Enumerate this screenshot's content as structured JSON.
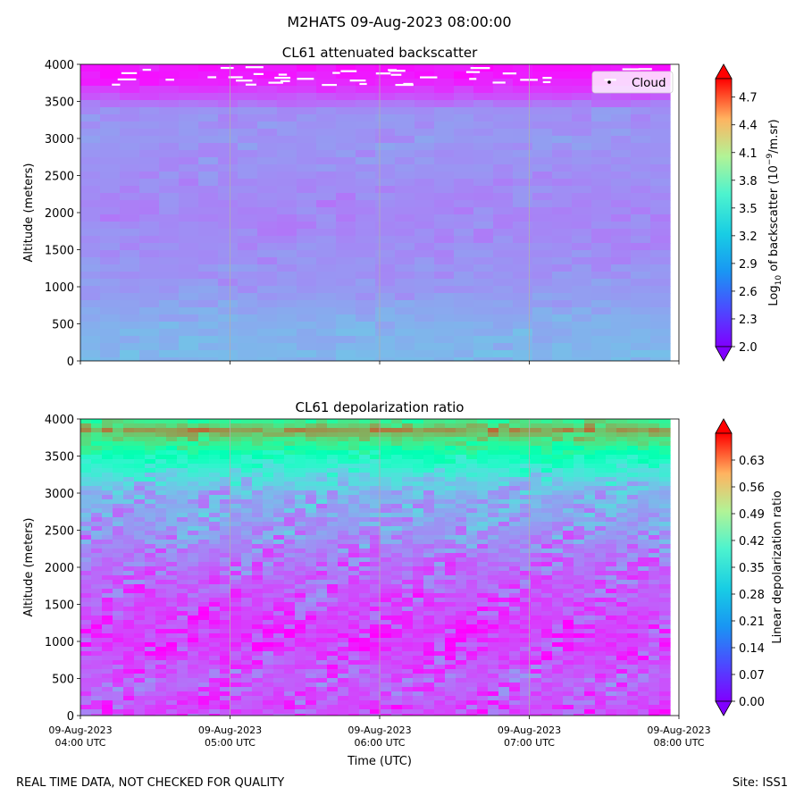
{
  "figure": {
    "suptitle": "M2HATS 09-Aug-2023 08:00:00",
    "footer_left": "REAL TIME DATA, NOT CHECKED FOR QUALITY",
    "footer_right": "Site: ISS1"
  },
  "chart_data": [
    {
      "type": "heatmap",
      "title": "CL61 attenuated backscatter",
      "xlabel": "",
      "ylabel": "Altitude (meters)",
      "xlim": [
        0,
        4
      ],
      "ylim": [
        0,
        4000
      ],
      "yticks": [
        0,
        500,
        1000,
        1500,
        2000,
        2500,
        3000,
        3500,
        4000
      ],
      "xtick_labels_shown": false,
      "vertical_gridlines_hours": [
        1,
        2,
        3
      ],
      "colorbar": {
        "label": "Log10 of backscatter (10^-9/m.sr)",
        "label_main": "Log",
        "label_sub": "10",
        "label_rest": " of backscatter (10",
        "label_sup": "−9",
        "label_end": "/m.sr)",
        "min": 2.0,
        "max": 4.9,
        "ticks": [
          "2.0",
          "2.3",
          "2.6",
          "2.9",
          "3.2",
          "3.5",
          "3.8",
          "4.1",
          "4.4",
          "4.7"
        ],
        "extend": "both",
        "colormap": "rainbow"
      },
      "legend": {
        "label": "Cloud",
        "placement": "top-right"
      },
      "profile_description": {
        "altitudes_m": [
          0,
          500,
          1000,
          1500,
          2000,
          2500,
          3000,
          3400,
          3600,
          3800,
          4000
        ],
        "log_backscatter": [
          2.75,
          2.7,
          2.58,
          2.55,
          2.5,
          2.55,
          2.58,
          2.55,
          2.25,
          2.1,
          2.05
        ]
      }
    },
    {
      "type": "heatmap",
      "title": "CL61 depolarization ratio",
      "xlabel": "Time (UTC)",
      "ylabel": "Altitude (meters)",
      "xlim": [
        0,
        4
      ],
      "ylim": [
        0,
        4000
      ],
      "yticks": [
        0,
        500,
        1000,
        1500,
        2000,
        2500,
        3000,
        3500,
        4000
      ],
      "xticks": [
        {
          "date": "09-Aug-2023",
          "time": "04:00 UTC"
        },
        {
          "date": "09-Aug-2023",
          "time": "05:00 UTC"
        },
        {
          "date": "09-Aug-2023",
          "time": "06:00 UTC"
        },
        {
          "date": "09-Aug-2023",
          "time": "07:00 UTC"
        },
        {
          "date": "09-Aug-2023",
          "time": "08:00 UTC"
        }
      ],
      "vertical_gridlines_hours": [
        1,
        2,
        3
      ],
      "colorbar": {
        "label": "Linear depolarization ratio",
        "min": 0.0,
        "max": 0.7,
        "ticks": [
          "0.00",
          "0.07",
          "0.14",
          "0.21",
          "0.28",
          "0.35",
          "0.42",
          "0.49",
          "0.56",
          "0.63"
        ],
        "extend": "both",
        "colormap": "rainbow"
      },
      "profile_description": {
        "altitudes_m": [
          0,
          500,
          1000,
          1500,
          2000,
          2500,
          3000,
          3300,
          3500,
          3700,
          3850,
          4000
        ],
        "depol_ratio": [
          0.06,
          0.09,
          0.05,
          0.07,
          0.1,
          0.14,
          0.17,
          0.26,
          0.33,
          0.45,
          0.55,
          0.4
        ]
      }
    }
  ]
}
